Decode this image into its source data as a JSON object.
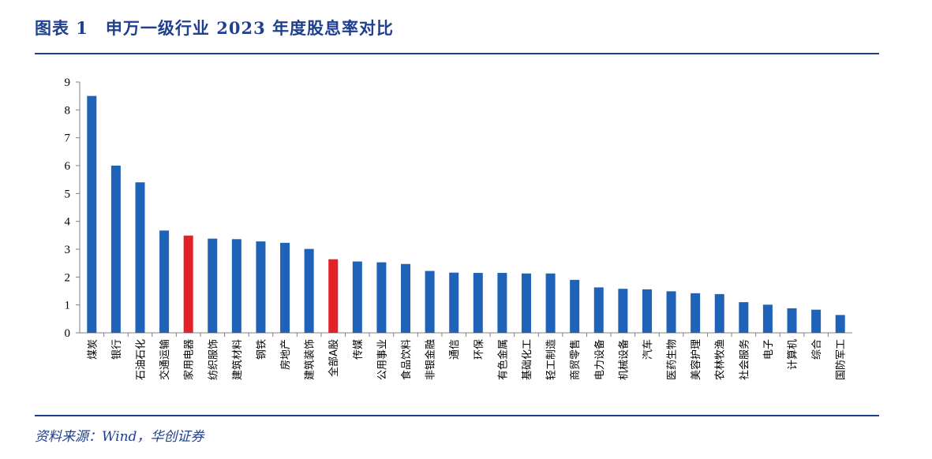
{
  "header": {
    "title": "图表 1　申万一级行业 2023 年度股息率对比"
  },
  "footer": {
    "source": "资料来源：Wind，华创证券"
  },
  "colors": {
    "accent": "#1f3f8f",
    "bar": "#1f63b9",
    "highlight": "#e32128"
  },
  "chart_data": {
    "type": "bar",
    "title": "",
    "xlabel": "",
    "ylabel": "",
    "ylim": [
      0,
      9
    ],
    "yticks": [
      0,
      1,
      2,
      3,
      4,
      5,
      6,
      7,
      8,
      9
    ],
    "grid": false,
    "categories": [
      "煤炭",
      "银行",
      "石油石化",
      "交通运输",
      "家用电器",
      "纺织服饰",
      "建筑材料",
      "钢铁",
      "房地产",
      "建筑装饰",
      "全部A股",
      "传媒",
      "公用事业",
      "食品饮料",
      "非银金融",
      "通信",
      "环保",
      "有色金属",
      "基础化工",
      "轻工制造",
      "商贸零售",
      "电力设备",
      "机械设备",
      "汽车",
      "医药生物",
      "美容护理",
      "农林牧渔",
      "社会服务",
      "电子",
      "计算机",
      "综合",
      "国防军工"
    ],
    "values": [
      8.5,
      6.0,
      5.4,
      3.67,
      3.49,
      3.38,
      3.36,
      3.28,
      3.23,
      3.01,
      2.64,
      2.56,
      2.53,
      2.47,
      2.22,
      2.16,
      2.15,
      2.15,
      2.13,
      2.13,
      1.9,
      1.63,
      1.58,
      1.56,
      1.49,
      1.42,
      1.39,
      1.1,
      1.01,
      0.88,
      0.83,
      0.64
    ],
    "highlighted": [
      "家用电器",
      "全部A股"
    ]
  }
}
